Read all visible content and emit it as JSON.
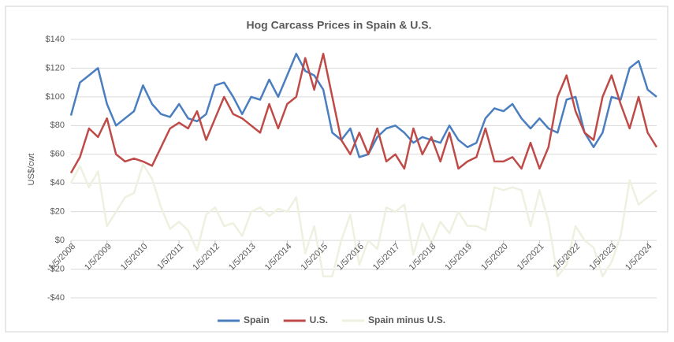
{
  "chart_data": {
    "type": "line",
    "title": "Hog Carcass Prices in Spain & U.S.",
    "y_label": "US$/cwt",
    "x": [
      2008,
      2008.25,
      2008.5,
      2008.75,
      2009,
      2009.25,
      2009.5,
      2009.75,
      2010,
      2010.25,
      2010.5,
      2010.75,
      2011,
      2011.25,
      2011.5,
      2011.75,
      2012,
      2012.25,
      2012.5,
      2012.75,
      2013,
      2013.25,
      2013.5,
      2013.75,
      2014,
      2014.25,
      2014.5,
      2014.75,
      2015,
      2015.25,
      2015.5,
      2015.75,
      2016,
      2016.25,
      2016.5,
      2016.75,
      2017,
      2017.25,
      2017.5,
      2017.75,
      2018,
      2018.25,
      2018.5,
      2018.75,
      2019,
      2019.25,
      2019.5,
      2019.75,
      2020,
      2020.25,
      2020.5,
      2020.75,
      2021,
      2021.25,
      2021.5,
      2021.75,
      2022,
      2022.25,
      2022.5,
      2022.75,
      2023,
      2023.25,
      2023.5,
      2023.75,
      2024,
      2024.25
    ],
    "series": [
      {
        "name": "Spain",
        "color": "#4a7ebf",
        "values": [
          87,
          110,
          115,
          120,
          95,
          80,
          85,
          90,
          108,
          95,
          88,
          86,
          95,
          85,
          83,
          88,
          108,
          110,
          100,
          88,
          100,
          98,
          112,
          100,
          115,
          130,
          118,
          115,
          105,
          75,
          70,
          78,
          58,
          60,
          72,
          78,
          80,
          75,
          68,
          72,
          70,
          68,
          80,
          70,
          65,
          68,
          85,
          92,
          90,
          95,
          85,
          78,
          85,
          78,
          75,
          98,
          100,
          75,
          65,
          75,
          100,
          98,
          120,
          125,
          105,
          100
        ]
      },
      {
        "name": "U.S.",
        "color": "#be4b48",
        "values": [
          47,
          58,
          78,
          72,
          85,
          60,
          55,
          57,
          55,
          52,
          65,
          78,
          82,
          78,
          90,
          70,
          85,
          100,
          88,
          85,
          80,
          75,
          95,
          78,
          95,
          100,
          127,
          105,
          130,
          100,
          70,
          60,
          75,
          60,
          78,
          55,
          60,
          50,
          78,
          60,
          72,
          55,
          75,
          50,
          55,
          58,
          78,
          55,
          55,
          58,
          50,
          68,
          50,
          65,
          100,
          115,
          90,
          75,
          70,
          100,
          115,
          95,
          78,
          100,
          75,
          65
        ]
      },
      {
        "name": "Spain minus U.S.",
        "color": "#eef0e0",
        "values": [
          40,
          52,
          37,
          48,
          10,
          20,
          30,
          33,
          53,
          43,
          23,
          8,
          13,
          7,
          -7,
          18,
          23,
          10,
          12,
          3,
          20,
          23,
          17,
          22,
          20,
          30,
          -9,
          10,
          -25,
          -25,
          0,
          18,
          -17,
          0,
          -6,
          23,
          20,
          25,
          -10,
          12,
          -2,
          13,
          5,
          20,
          10,
          10,
          7,
          37,
          35,
          37,
          35,
          10,
          35,
          13,
          -25,
          -17,
          10,
          0,
          -5,
          -25,
          -15,
          3,
          42,
          25,
          30,
          35
        ]
      }
    ],
    "xlim": [
      2008,
      2024.25
    ],
    "xticks": [
      {
        "value": 2008,
        "label": "1/5/2008"
      },
      {
        "value": 2009,
        "label": "1/5/2009"
      },
      {
        "value": 2010,
        "label": "1/5/2010"
      },
      {
        "value": 2011,
        "label": "1/5/2011"
      },
      {
        "value": 2012,
        "label": "1/5/2012"
      },
      {
        "value": 2013,
        "label": "1/5/2013"
      },
      {
        "value": 2014,
        "label": "1/5/2014"
      },
      {
        "value": 2015,
        "label": "1/5/2015"
      },
      {
        "value": 2016,
        "label": "1/5/2016"
      },
      {
        "value": 2017,
        "label": "1/5/2017"
      },
      {
        "value": 2018,
        "label": "1/5/2018"
      },
      {
        "value": 2019,
        "label": "1/5/2019"
      },
      {
        "value": 2020,
        "label": "1/5/2020"
      },
      {
        "value": 2021,
        "label": "1/5/2021"
      },
      {
        "value": 2022,
        "label": "1/5/2022"
      },
      {
        "value": 2023,
        "label": "1/5/2023"
      },
      {
        "value": 2024,
        "label": "1/5/2024"
      }
    ],
    "ylim": [
      -40,
      140
    ],
    "yticks": [
      {
        "value": -40,
        "label": "-$40"
      },
      {
        "value": -20,
        "label": "-$20"
      },
      {
        "value": 0,
        "label": "$0"
      },
      {
        "value": 20,
        "label": "$20"
      },
      {
        "value": 40,
        "label": "$40"
      },
      {
        "value": 60,
        "label": "$60"
      },
      {
        "value": 80,
        "label": "$80"
      },
      {
        "value": 100,
        "label": "$100"
      },
      {
        "value": 120,
        "label": "$120"
      },
      {
        "value": 140,
        "label": "$140"
      }
    ],
    "grid": true,
    "legend": "bottom"
  }
}
